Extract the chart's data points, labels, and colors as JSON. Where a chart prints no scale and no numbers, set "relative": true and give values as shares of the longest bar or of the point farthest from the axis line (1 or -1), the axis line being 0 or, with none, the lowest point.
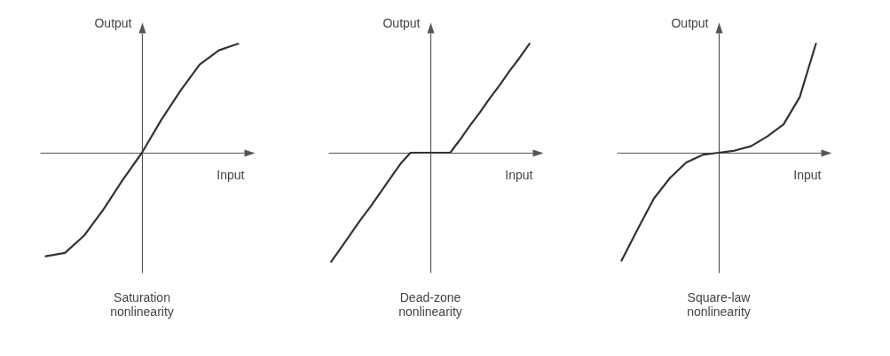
{
  "chart_data": [
    {
      "type": "line",
      "title": "Saturation nonlinearity",
      "xlabel": "Input",
      "ylabel": "Output",
      "relative": true,
      "color": "#333333",
      "categories": [
        null,
        null,
        null,
        null,
        null,
        null,
        null,
        null,
        null,
        null,
        null
      ],
      "values": [
        -0.95,
        -0.92,
        -0.76,
        -0.52,
        -0.25,
        0,
        0.3,
        0.57,
        0.81,
        0.94,
        1
      ]
    },
    {
      "type": "line",
      "title": "Dead-zone nonlinearity",
      "xlabel": "Input",
      "ylabel": "Output",
      "relative": true,
      "color": "#333333",
      "categories": [
        null,
        null,
        null,
        null,
        null,
        null,
        null,
        null,
        null,
        null,
        null,
        null,
        null,
        null,
        null,
        null,
        null,
        null,
        null,
        null,
        null
      ],
      "values": [
        -1,
        -0.87,
        -0.74,
        -0.61,
        -0.49,
        -0.36,
        -0.23,
        -0.1,
        0,
        0,
        0,
        0,
        0,
        0.12,
        0.25,
        0.37,
        0.5,
        0.62,
        0.75,
        0.87,
        1
      ]
    },
    {
      "type": "line",
      "title": "Square-law nonlinearity",
      "xlabel": "Input",
      "ylabel": "Output",
      "relative": true,
      "color": "#333333",
      "categories": [
        null,
        null,
        null,
        null,
        null,
        null,
        null,
        null,
        null,
        null,
        null,
        null,
        null
      ],
      "values": [
        -0.99,
        -0.7,
        -0.42,
        -0.23,
        -0.09,
        -0.02,
        0,
        0.02,
        0.06,
        0.15,
        0.26,
        0.51,
        1
      ]
    }
  ]
}
